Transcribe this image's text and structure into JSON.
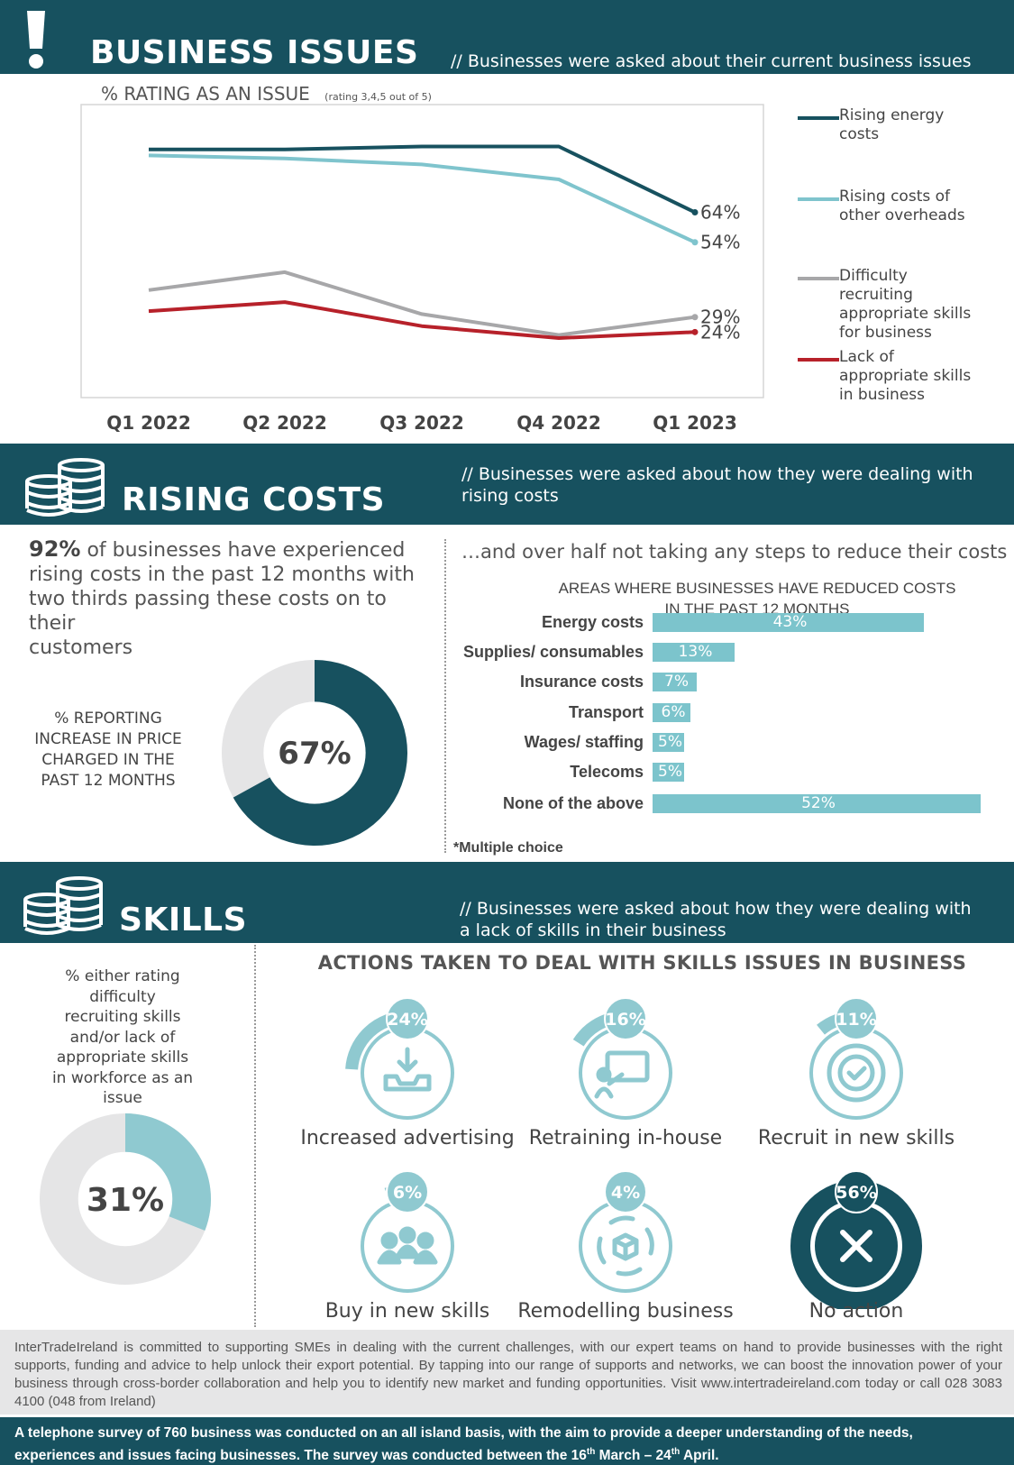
{
  "section1": {
    "title": "BUSINESS ISSUES",
    "subtitle": "// Businesses were asked about their current business issues",
    "chart_heading": "% RATING AS AN ISSUE",
    "chart_note": "(rating 3,4,5 out of 5)"
  },
  "chart_data": [
    {
      "type": "line",
      "title": "% RATING AS AN ISSUE",
      "subtitle": "(rating 3,4,5 out of 5)",
      "categories": [
        "Q1 2022",
        "Q2 2022",
        "Q3 2022",
        "Q4 2022",
        "Q1 2023"
      ],
      "ylim": [
        0,
        100
      ],
      "grid": false,
      "legend_position": "right",
      "series": [
        {
          "name": "Rising energy costs",
          "values": [
            85,
            85,
            86,
            86,
            64
          ],
          "end_label": "64%",
          "color": "#17515f"
        },
        {
          "name": "Rising costs of other overheads",
          "values": [
            83,
            82,
            80,
            75,
            54
          ],
          "end_label": "54%",
          "color": "#7fc4cd"
        },
        {
          "name": "Difficulty recruiting appropriate skills for business",
          "values": [
            38,
            44,
            30,
            23,
            29
          ],
          "end_label": "29%",
          "color": "#a7a7a9"
        },
        {
          "name": "Lack of appropriate skills in business",
          "values": [
            31,
            34,
            26,
            22,
            24
          ],
          "end_label": "24%",
          "color": "#b7212a"
        }
      ]
    },
    {
      "type": "pie",
      "title": "% REPORTING INCREASE IN PRICE CHARGED IN THE PAST 12 MONTHS",
      "values": [
        67,
        33
      ],
      "center_label": "67%"
    },
    {
      "type": "bar",
      "orientation": "horizontal",
      "title": "AREAS WHERE BUSINESSES HAVE REDUCED COSTS IN THE PAST 12 MONTHS",
      "categories": [
        "Energy costs",
        "Supplies/ consumables",
        "Insurance costs",
        "Transport",
        "Wages/ staffing",
        "Telecoms",
        "None of the above"
      ],
      "values": [
        43,
        13,
        7,
        6,
        5,
        5,
        52
      ],
      "value_labels": [
        "43%",
        "13%",
        "7%",
        "6%",
        "5%",
        "5%",
        "52%"
      ],
      "note": "*Multiple choice"
    },
    {
      "type": "pie",
      "title": "% either rating difficulty recruiting skills and/or lack of appropriate skills in workforce as an issue",
      "values": [
        31,
        69
      ],
      "center_label": "31%"
    },
    {
      "type": "table",
      "title": "ACTIONS TAKEN TO DEAL WITH SKILLS ISSUES IN BUSINESS",
      "categories": [
        "Increased advertising",
        "Retraining in-house",
        "Recruit in new skills",
        "Buy in new skills",
        "Remodelling business",
        "No action"
      ],
      "values": [
        24,
        16,
        11,
        6,
        4,
        56
      ],
      "value_labels": [
        "24%",
        "16%",
        "11%",
        "6%",
        "4%",
        "56%"
      ]
    }
  ],
  "legend": [
    {
      "line1": "Rising energy",
      "line2": "costs"
    },
    {
      "line1": "Rising costs of",
      "line2": "other overheads"
    },
    {
      "line1": "Difficulty",
      "line2": "recruiting",
      "line3": "appropriate skills",
      "line4": "for business"
    },
    {
      "line1": "Lack of",
      "line2": "appropriate skills",
      "line3": "in business"
    }
  ],
  "section2": {
    "title": "RISING COSTS",
    "subtitle_line1": "// Businesses were asked about how they were dealing with",
    "subtitle_line2": "rising costs",
    "stat_bold": "92%",
    "stat_line1": " of businesses have experienced",
    "stat_line2": "rising costs in the past 12 months with",
    "stat_line3": "two thirds passing these costs on to their",
    "stat_line4": "customers",
    "donut_caption1": "% REPORTING",
    "donut_caption2": "INCREASE IN PRICE",
    "donut_caption3": "CHARGED IN THE",
    "donut_caption4": "PAST 12 MONTHS",
    "right_headline": "…and over half not taking any steps to reduce their costs",
    "bar_title1": "AREAS WHERE BUSINESSES HAVE REDUCED COSTS",
    "bar_title2": "IN THE PAST 12 MONTHS"
  },
  "section3": {
    "title": "SKILLS",
    "subtitle_line1": "// Businesses were asked about how they were dealing with",
    "subtitle_line2": "a lack of skills in their business",
    "donut_caption": [
      "% either rating",
      "difficulty",
      "recruiting skills",
      "and/or lack of",
      "appropriate skills",
      "in workforce as an",
      "issue"
    ],
    "actions_title": "ACTIONS TAKEN TO DEAL WITH SKILLS ISSUES IN BUSINESS"
  },
  "icons": {
    "issues": "exclamation-icon",
    "costs": "coin-stack-icon",
    "skills": "coin-stack-icon",
    "actions": [
      "inbox-download-icon",
      "presentation-icon",
      "badge-check-icon",
      "team-icon",
      "box-cycle-icon",
      "x-icon"
    ]
  },
  "colors": {
    "dark_teal": "#17515f",
    "light_teal": "#7fc4cd",
    "grey": "#a7a7a9",
    "red": "#b7212a",
    "light_grey": "#e5e5e6"
  },
  "footer": {
    "paragraph": "InterTradeIreland is committed to supporting SMEs in dealing with the current challenges, with our expert teams on hand to provide businesses with the right supports, funding and advice to help unlock their export potential. By tapping into our range of supports and networks, we can boost the innovation power of your business through cross-border collaboration and help you to identify new market and funding opportunities. Visit www.intertradeireland.com today or call 028 3083 4100 (048 from Ireland)",
    "survey_line1": "A telephone survey of 760 business was conducted on an all island basis, with the aim to provide a deeper understanding of the needs,",
    "survey_line2a": "experiences and issues facing businesses.  The survey was conducted between the 16",
    "sup1": "th",
    "survey_line2b": " March – 24",
    "sup2": "th",
    "survey_line2c": " April."
  }
}
